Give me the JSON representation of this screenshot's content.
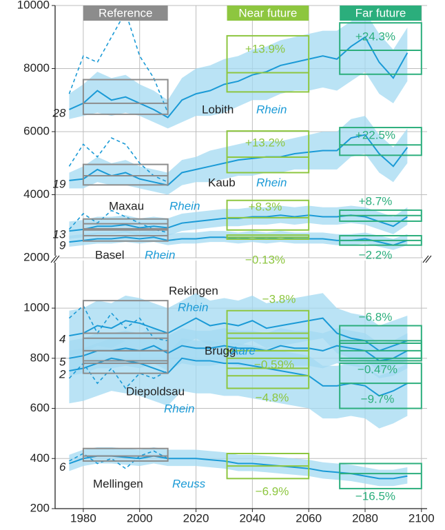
{
  "chart_data": [
    {
      "type": "line",
      "xlim": [
        1970,
        2102
      ],
      "ylim": [
        2000,
        10000
      ],
      "yticks": [
        2000,
        4000,
        6000,
        8000,
        10000
      ],
      "grid": true,
      "band_color": "#a3d9f2",
      "line_color": "#1a9ad6",
      "periods": [
        {
          "label": "Reference",
          "start": 1980,
          "end": 2010,
          "color": "#8c8c8c"
        },
        {
          "label": "Near future",
          "start": 2031,
          "end": 2060,
          "color": "#8dc63f"
        },
        {
          "label": "Far future",
          "start": 2071,
          "end": 2100,
          "color": "#2bae7c"
        }
      ],
      "x": [
        1975,
        1980,
        1985,
        1990,
        1995,
        2000,
        2005,
        2010,
        2015,
        2020,
        2025,
        2030,
        2035,
        2040,
        2045,
        2050,
        2055,
        2060,
        2065,
        2070,
        2075,
        2080,
        2085,
        2090,
        2095
      ],
      "obs_x": [
        1975,
        1980,
        1985,
        1990,
        1995,
        2000,
        2005,
        2010
      ],
      "series": [
        {
          "name": "Lobith",
          "river": "Rhein",
          "count": "28",
          "values": [
            6700,
            6900,
            7300,
            7000,
            7100,
            6900,
            6700,
            6450,
            7000,
            7200,
            7300,
            7500,
            7600,
            7800,
            7900,
            8100,
            8200,
            8300,
            8400,
            8300,
            8700,
            9000,
            8200,
            7700,
            8500
          ],
          "low": [
            6400,
            6500,
            6600,
            6500,
            6600,
            6500,
            6300,
            6100,
            6300,
            6500,
            6500,
            6600,
            6800,
            7000,
            7000,
            7200,
            7300,
            7300,
            7400,
            7300,
            7600,
            7900,
            7200,
            6900,
            7600
          ],
          "high": [
            7200,
            7500,
            7900,
            7700,
            7800,
            7500,
            7300,
            7000,
            7700,
            8000,
            8100,
            8300,
            8400,
            8600,
            8700,
            8900,
            9000,
            9100,
            9200,
            9200,
            9500,
            9800,
            9100,
            8600,
            9300
          ],
          "observed": [
            7200,
            8400,
            8200,
            9000,
            9800,
            8400,
            7700,
            6600
          ],
          "boxes": [
            {
              "period": 0,
              "low": 6550,
              "mid": 6900,
              "high": 7650
            },
            {
              "period": 1,
              "low": 7260,
              "mid": 7870,
              "high": 9040,
              "change": "+13.9%"
            },
            {
              "period": 2,
              "low": 7820,
              "mid": 8580,
              "high": 9450,
              "change": "+24.3%"
            }
          ]
        },
        {
          "name": "Kaub",
          "river": "Rhein",
          "count": "19",
          "values": [
            4450,
            4500,
            4800,
            4600,
            4700,
            4500,
            4400,
            4300,
            4700,
            4800,
            4900,
            5000,
            5100,
            5150,
            5200,
            5200,
            5300,
            5350,
            5400,
            5400,
            5800,
            5900,
            5300,
            4900,
            5500
          ],
          "low": [
            4200,
            4200,
            4400,
            4300,
            4300,
            4200,
            4100,
            4000,
            4300,
            4400,
            4400,
            4500,
            4600,
            4600,
            4700,
            4700,
            4800,
            4800,
            4800,
            4800,
            5200,
            5300,
            4700,
            4400,
            5000
          ],
          "high": [
            4700,
            4900,
            5200,
            5000,
            5100,
            4900,
            4800,
            4700,
            5100,
            5200,
            5400,
            5500,
            5600,
            5700,
            5700,
            5700,
            5800,
            5900,
            6000,
            6000,
            6400,
            6500,
            5900,
            5500,
            6100
          ],
          "observed": [
            4900,
            5600,
            5200,
            5800,
            5600,
            5000,
            4600,
            4400
          ],
          "boxes": [
            {
              "period": 0,
              "low": 4310,
              "mid": 4600,
              "high": 4960
            },
            {
              "period": 1,
              "low": 4700,
              "mid": 5190,
              "high": 6020,
              "change": "+13.2%"
            },
            {
              "period": 2,
              "low": 5250,
              "mid": 5580,
              "high": 6130,
              "change": "+22.5%"
            }
          ]
        },
        {
          "name": "Maxau",
          "river": "Rhein",
          "count": "13",
          "values": [
            2850,
            2900,
            3000,
            3000,
            3050,
            2950,
            3000,
            2950,
            3100,
            3150,
            3200,
            3250,
            3250,
            3300,
            3300,
            3350,
            3300,
            3350,
            3300,
            3300,
            3350,
            3300,
            3150,
            3000,
            3300
          ],
          "low": [
            2600,
            2650,
            2750,
            2750,
            2800,
            2700,
            2750,
            2700,
            2850,
            2900,
            2950,
            3000,
            3000,
            3050,
            3050,
            3100,
            3050,
            3100,
            3050,
            3050,
            3100,
            3050,
            2900,
            2750,
            3050
          ],
          "high": [
            3150,
            3200,
            3300,
            3300,
            3350,
            3250,
            3300,
            3250,
            3400,
            3450,
            3500,
            3550,
            3550,
            3600,
            3600,
            3650,
            3600,
            3650,
            3600,
            3600,
            3650,
            3600,
            3450,
            3300,
            3600
          ],
          "observed": [
            2900,
            3400,
            3100,
            3500,
            3300,
            3100,
            2900,
            2800
          ],
          "boxes": [
            {
              "period": 0,
              "low": 2920,
              "mid": 3080,
              "high": 3230
            },
            {
              "period": 1,
              "low": 2880,
              "mid": 3270,
              "high": 3820,
              "change": "+8.3%"
            },
            {
              "period": 2,
              "low": 3160,
              "mid": 3340,
              "high": 3510,
              "change": "+8.7%"
            }
          ]
        },
        {
          "name": "Basel",
          "river": "Rhein",
          "count": "9",
          "values": [
            2500,
            2550,
            2600,
            2600,
            2650,
            2600,
            2650,
            2550,
            2600,
            2600,
            2650,
            2650,
            2600,
            2650,
            2600,
            2650,
            2600,
            2600,
            2600,
            2550,
            2550,
            2600,
            2500,
            2400,
            2550
          ],
          "low": [
            2350,
            2400,
            2450,
            2450,
            2500,
            2450,
            2500,
            2400,
            2450,
            2450,
            2500,
            2500,
            2450,
            2500,
            2450,
            2500,
            2450,
            2450,
            2450,
            2400,
            2400,
            2450,
            2350,
            2250,
            2400
          ],
          "high": [
            2700,
            2750,
            2800,
            2800,
            2850,
            2800,
            2850,
            2750,
            2800,
            2800,
            2850,
            2850,
            2800,
            2850,
            2800,
            2850,
            2800,
            2800,
            2800,
            2750,
            2750,
            2800,
            2700,
            2600,
            2750
          ],
          "boxes": [
            {
              "period": 0,
              "low": 2530,
              "mid": 2700,
              "high": 2880
            },
            {
              "period": 1,
              "low": 2590,
              "mid": 2650,
              "high": 2720,
              "change": "−0.13%"
            },
            {
              "period": 2,
              "low": 2400,
              "mid": 2550,
              "high": 2700,
              "change": "−2.2%"
            }
          ]
        }
      ]
    },
    {
      "type": "line",
      "xlim": [
        1970,
        2102
      ],
      "ylim": [
        200,
        1190
      ],
      "yticks": [
        200,
        400,
        600,
        800,
        1000
      ],
      "xticks": [
        1980,
        2000,
        2020,
        2040,
        2060,
        2080,
        2100
      ],
      "grid": true,
      "band_color": "#a3d9f2",
      "line_color": "#1a9ad6",
      "x": [
        1975,
        1980,
        1985,
        1990,
        1995,
        2000,
        2005,
        2010,
        2015,
        2020,
        2025,
        2030,
        2035,
        2040,
        2045,
        2050,
        2055,
        2060,
        2065,
        2070,
        2075,
        2080,
        2085,
        2090,
        2095
      ],
      "obs_x": [
        1975,
        1980,
        1985,
        1990,
        1995,
        2000,
        2005,
        2010
      ],
      "series": [
        {
          "name": "Rekingen",
          "river": "Rhein",
          "count": "4",
          "values": [
            890,
            900,
            930,
            920,
            950,
            940,
            920,
            900,
            930,
            960,
            930,
            940,
            930,
            950,
            920,
            930,
            940,
            950,
            960,
            900,
            880,
            870,
            830,
            850,
            870
          ],
          "low": [
            810,
            820,
            850,
            840,
            870,
            860,
            840,
            820,
            850,
            880,
            850,
            860,
            850,
            870,
            840,
            850,
            860,
            870,
            880,
            820,
            800,
            790,
            750,
            770,
            790
          ],
          "high": [
            990,
            1000,
            1030,
            1020,
            1050,
            1040,
            1020,
            1000,
            1030,
            1060,
            1030,
            1040,
            1030,
            1050,
            1020,
            1030,
            1040,
            1050,
            1060,
            1000,
            980,
            970,
            930,
            950,
            970
          ],
          "observed": [
            960,
            1010,
            900,
            980,
            920,
            960,
            880,
            870
          ],
          "boxes": [
            {
              "period": 0,
              "low": 830,
              "mid": 900,
              "high": 1030
            },
            {
              "period": 1,
              "low": 830,
              "mid": 900,
              "high": 990,
              "change": "−3.8%"
            },
            {
              "period": 2,
              "low": 800,
              "mid": 860,
              "high": 930,
              "change": "−6.8%"
            }
          ]
        },
        {
          "name": "Brugg",
          "river": "Aare",
          "count": "5",
          "values": [
            800,
            810,
            830,
            830,
            840,
            830,
            850,
            820,
            850,
            840,
            840,
            850,
            840,
            840,
            830,
            850,
            840,
            840,
            830,
            850,
            840,
            830,
            790,
            800,
            830
          ],
          "low": [
            730,
            740,
            760,
            760,
            770,
            760,
            780,
            750,
            780,
            770,
            770,
            780,
            770,
            770,
            760,
            780,
            770,
            770,
            760,
            780,
            770,
            760,
            720,
            730,
            760
          ],
          "high": [
            870,
            880,
            900,
            900,
            910,
            900,
            920,
            890,
            920,
            910,
            910,
            920,
            910,
            910,
            900,
            920,
            910,
            910,
            900,
            920,
            910,
            900,
            860,
            870,
            900
          ],
          "boxes": [
            {
              "period": 0,
              "low": 780,
              "mid": 830,
              "high": 880
            },
            {
              "period": 1,
              "low": 760,
              "mid": 830,
              "high": 880,
              "change": "−0.59%"
            },
            {
              "period": 2,
              "low": 790,
              "mid": 830,
              "high": 870,
              "change": "−0.47%"
            }
          ]
        },
        {
          "name": "Diepoldsau",
          "river": "Rhein",
          "count": "2",
          "values": [
            750,
            760,
            780,
            800,
            790,
            780,
            760,
            740,
            800,
            790,
            790,
            780,
            780,
            770,
            760,
            750,
            740,
            730,
            690,
            690,
            700,
            690,
            650,
            670,
            700
          ],
          "low": [
            620,
            630,
            650,
            670,
            660,
            650,
            630,
            610,
            670,
            660,
            660,
            650,
            650,
            640,
            630,
            620,
            610,
            600,
            560,
            560,
            570,
            560,
            520,
            540,
            570
          ],
          "high": [
            830,
            840,
            860,
            880,
            870,
            860,
            840,
            820,
            880,
            870,
            870,
            860,
            860,
            850,
            840,
            830,
            820,
            810,
            770,
            770,
            780,
            770,
            730,
            750,
            780
          ],
          "observed": [
            720,
            780,
            700,
            760,
            680,
            740,
            720,
            750
          ],
          "boxes": [
            {
              "period": 0,
              "low": 740,
              "mid": 790,
              "high": 830
            },
            {
              "period": 1,
              "low": 680,
              "mid": 730,
              "high": 800,
              "change": "−4.8%"
            },
            {
              "period": 2,
              "low": 600,
              "mid": 700,
              "high": 780,
              "change": "−9.7%"
            }
          ]
        },
        {
          "name": "Mellingen",
          "river": "Reuss",
          "count": "6",
          "values": [
            380,
            400,
            410,
            410,
            405,
            400,
            410,
            400,
            400,
            400,
            395,
            390,
            380,
            380,
            375,
            370,
            365,
            360,
            350,
            345,
            340,
            330,
            320,
            320,
            330
          ],
          "low": [
            350,
            370,
            380,
            380,
            375,
            370,
            380,
            370,
            370,
            370,
            365,
            360,
            350,
            350,
            345,
            340,
            335,
            330,
            320,
            315,
            310,
            300,
            290,
            290,
            300
          ],
          "high": [
            415,
            435,
            445,
            445,
            440,
            435,
            445,
            435,
            435,
            435,
            430,
            425,
            415,
            415,
            410,
            405,
            400,
            395,
            385,
            380,
            375,
            365,
            355,
            355,
            365
          ],
          "observed": [
            390,
            420,
            380,
            400,
            360,
            410,
            430,
            400
          ],
          "boxes": [
            {
              "period": 0,
              "low": 390,
              "mid": 410,
              "high": 440
            },
            {
              "period": 1,
              "low": 320,
              "mid": 370,
              "high": 420,
              "change": "−6.9%"
            },
            {
              "period": 2,
              "low": 280,
              "mid": 340,
              "high": 380,
              "change": "−16.5%"
            }
          ]
        }
      ]
    }
  ]
}
